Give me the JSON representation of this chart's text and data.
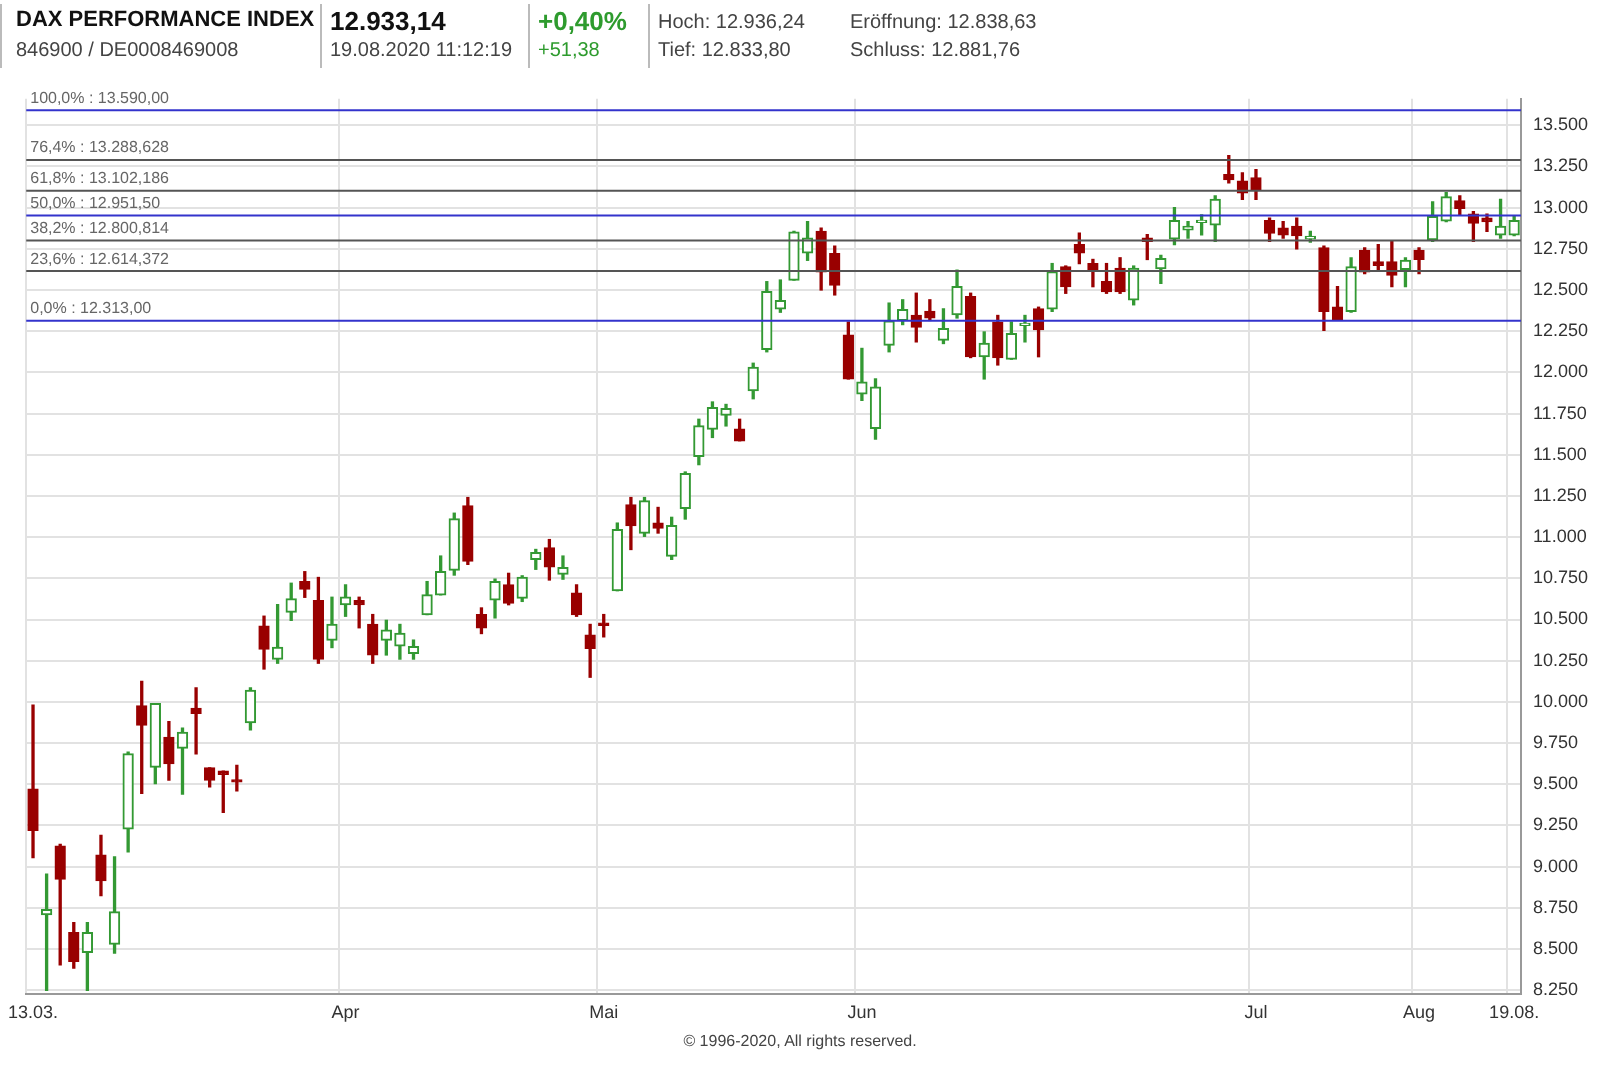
{
  "chart_data": {
    "type": "candlestick",
    "title": "DAX PERFORMANCE INDEX",
    "subtitle": "846900 / DE0008469008",
    "annotations": [
      "12.933,14",
      "19.08.2020 11:12:19",
      "+0,40%",
      "+51,38",
      "Hoch: 12.936,24",
      "Tief: 12.833,80",
      "Eröffnung: 12.838,63",
      "Schluss: 12.881,76",
      "© 1996-2020, All rights reserved."
    ],
    "categories": [
      "13.03.",
      null,
      null,
      null,
      null,
      null,
      null,
      null,
      null,
      null,
      null,
      null,
      null,
      null,
      null,
      null,
      null,
      null,
      null,
      null,
      null,
      null,
      null,
      "Apr",
      null,
      null,
      null,
      null,
      null,
      null,
      null,
      null,
      null,
      null,
      null,
      null,
      null,
      null,
      null,
      null,
      null,
      null,
      "Mai",
      null,
      null,
      null,
      null,
      null,
      null,
      null,
      null,
      null,
      null,
      null,
      null,
      null,
      null,
      null,
      null,
      null,
      null,
      "Jun",
      null,
      null,
      null,
      null,
      null,
      null,
      null,
      null,
      null,
      null,
      null,
      null,
      null,
      null,
      null,
      null,
      null,
      null,
      null,
      null,
      null,
      null,
      null,
      null,
      null,
      null,
      null,
      null,
      "Jul",
      null,
      null,
      null,
      null,
      null,
      null,
      null,
      null,
      null,
      null,
      null,
      "Aug",
      null,
      null,
      null,
      null,
      null,
      null,
      "19.08."
    ],
    "ohlc": [
      [
        9470,
        9980,
        9055,
        9220
      ],
      [
        8710,
        8955,
        8250,
        8740
      ],
      [
        9125,
        9135,
        8405,
        8925
      ],
      [
        8600,
        8660,
        8385,
        8425
      ],
      [
        8480,
        8660,
        8250,
        8600
      ],
      [
        9070,
        9190,
        8825,
        8915
      ],
      [
        8530,
        9060,
        8475,
        8725
      ],
      [
        9230,
        9695,
        9090,
        9685
      ],
      [
        9975,
        10125,
        9445,
        9860
      ],
      [
        9605,
        9990,
        9505,
        9990
      ],
      [
        9785,
        9880,
        9525,
        9625
      ],
      [
        9720,
        9840,
        9440,
        9815
      ],
      [
        9960,
        10085,
        9685,
        9930
      ],
      [
        9600,
        9600,
        9485,
        9525
      ],
      [
        9580,
        9580,
        9330,
        9560
      ],
      [
        9525,
        9615,
        9460,
        9515
      ],
      [
        9875,
        10085,
        9830,
        10070
      ],
      [
        10460,
        10520,
        10200,
        10320
      ],
      [
        10260,
        10590,
        10235,
        10330
      ],
      [
        10545,
        10720,
        10495,
        10625
      ],
      [
        10730,
        10790,
        10635,
        10685
      ],
      [
        10615,
        10755,
        10235,
        10260
      ],
      [
        10375,
        10635,
        10330,
        10470
      ],
      [
        10590,
        10710,
        10520,
        10635
      ],
      [
        10615,
        10635,
        10450,
        10590
      ],
      [
        10470,
        10530,
        10235,
        10285
      ],
      [
        10375,
        10495,
        10285,
        10435
      ],
      [
        10340,
        10470,
        10260,
        10415
      ],
      [
        10295,
        10375,
        10260,
        10335
      ],
      [
        10530,
        10730,
        10530,
        10650
      ],
      [
        10650,
        10885,
        10650,
        10790
      ],
      [
        10800,
        11145,
        10770,
        11110
      ],
      [
        11190,
        11240,
        10835,
        10855
      ],
      [
        10530,
        10570,
        10415,
        10450
      ],
      [
        10620,
        10745,
        10510,
        10730
      ],
      [
        10710,
        10780,
        10590,
        10600
      ],
      [
        10630,
        10765,
        10610,
        10755
      ],
      [
        10865,
        10925,
        10805,
        10905
      ],
      [
        10935,
        10985,
        10740,
        10820
      ],
      [
        10775,
        10885,
        10745,
        10815
      ],
      [
        10660,
        10710,
        10520,
        10530
      ],
      [
        10405,
        10470,
        10150,
        10325
      ],
      [
        10470,
        10530,
        10395,
        10465
      ],
      [
        10675,
        11085,
        10675,
        11045
      ],
      [
        11195,
        11240,
        10925,
        11070
      ],
      [
        11025,
        11240,
        11005,
        11220
      ],
      [
        11085,
        11180,
        11025,
        11055
      ],
      [
        10885,
        11120,
        10865,
        11070
      ],
      [
        11175,
        11395,
        11110,
        11385
      ],
      [
        11490,
        11715,
        11440,
        11675
      ],
      [
        11655,
        11820,
        11605,
        11785
      ],
      [
        11740,
        11805,
        11675,
        11780
      ],
      [
        11655,
        11715,
        11585,
        11585
      ],
      [
        11890,
        12055,
        11840,
        12030
      ],
      [
        12140,
        12550,
        12125,
        12490
      ],
      [
        12385,
        12560,
        12365,
        12435
      ],
      [
        12560,
        12855,
        12560,
        12850
      ],
      [
        12725,
        12915,
        12680,
        12815
      ],
      [
        12855,
        12875,
        12500,
        12610
      ],
      [
        12720,
        12765,
        12470,
        12530
      ],
      [
        12225,
        12305,
        11960,
        11960
      ],
      [
        11870,
        12145,
        11830,
        11940
      ],
      [
        11660,
        11960,
        11595,
        11910
      ],
      [
        12165,
        12420,
        12125,
        12310
      ],
      [
        12315,
        12440,
        12290,
        12380
      ],
      [
        12345,
        12480,
        12185,
        12275
      ],
      [
        12370,
        12440,
        12315,
        12330
      ],
      [
        12195,
        12385,
        12175,
        12265
      ],
      [
        12350,
        12620,
        12330,
        12520
      ],
      [
        12460,
        12480,
        12090,
        12095
      ],
      [
        12095,
        12245,
        11960,
        12175
      ],
      [
        12305,
        12345,
        12045,
        12090
      ],
      [
        12080,
        12305,
        12080,
        12235
      ],
      [
        12285,
        12345,
        12185,
        12295
      ],
      [
        12385,
        12395,
        12095,
        12260
      ],
      [
        12385,
        12660,
        12370,
        12610
      ],
      [
        12640,
        12645,
        12480,
        12520
      ],
      [
        12775,
        12845,
        12660,
        12725
      ],
      [
        12660,
        12685,
        12520,
        12620
      ],
      [
        12550,
        12660,
        12480,
        12490
      ],
      [
        12630,
        12695,
        12480,
        12490
      ],
      [
        12440,
        12645,
        12410,
        12630
      ],
      [
        12815,
        12835,
        12685,
        12795
      ],
      [
        12630,
        12710,
        12540,
        12690
      ],
      [
        12810,
        13000,
        12775,
        12920
      ],
      [
        12865,
        12915,
        12815,
        12885
      ],
      [
        12910,
        12955,
        12835,
        12920
      ],
      [
        12895,
        13070,
        12795,
        13050
      ],
      [
        13200,
        13315,
        13150,
        13170
      ],
      [
        13160,
        13210,
        13050,
        13090
      ],
      [
        13180,
        13230,
        13050,
        13105
      ],
      [
        12920,
        12935,
        12795,
        12845
      ],
      [
        12875,
        12915,
        12815,
        12835
      ],
      [
        12885,
        12935,
        12750,
        12830
      ],
      [
        12810,
        12855,
        12790,
        12825
      ],
      [
        12755,
        12765,
        12255,
        12370
      ],
      [
        12395,
        12520,
        12315,
        12315
      ],
      [
        12370,
        12695,
        12365,
        12640
      ],
      [
        12740,
        12755,
        12600,
        12610
      ],
      [
        12670,
        12775,
        12620,
        12650
      ],
      [
        12670,
        12795,
        12520,
        12590
      ],
      [
        12625,
        12695,
        12520,
        12680
      ],
      [
        12740,
        12755,
        12600,
        12685
      ],
      [
        12805,
        13035,
        12795,
        12945
      ],
      [
        12920,
        13090,
        12915,
        13065
      ],
      [
        13040,
        13070,
        12955,
        12995
      ],
      [
        12960,
        12975,
        12795,
        12905
      ],
      [
        12935,
        12960,
        12855,
        12915
      ],
      [
        12835,
        13050,
        12815,
        12885
      ],
      [
        12835,
        12945,
        12830,
        12920
      ]
    ],
    "colors": [
      "#990000",
      "#339933",
      "#990000",
      "#990000",
      "#339933",
      "#990000",
      "#339933",
      "#339933",
      "#990000",
      "#339933",
      "#990000",
      "#339933",
      "#990000",
      "#990000",
      "#990000",
      "#990000",
      "#339933",
      "#990000",
      "#339933",
      "#339933",
      "#990000",
      "#990000",
      "#339933",
      "#339933",
      "#990000",
      "#990000",
      "#339933",
      "#339933",
      "#339933",
      "#339933",
      "#339933",
      "#339933",
      "#990000",
      "#990000",
      "#339933",
      "#990000",
      "#339933",
      "#339933",
      "#990000",
      "#339933",
      "#990000",
      "#990000",
      "#990000",
      "#339933",
      "#990000",
      "#339933",
      "#990000",
      "#339933",
      "#339933",
      "#339933",
      "#339933",
      "#339933",
      "#990000",
      "#339933",
      "#339933",
      "#339933",
      "#339933",
      "#339933",
      "#990000",
      "#990000",
      "#990000",
      "#339933",
      "#339933",
      "#339933",
      "#339933",
      "#990000",
      "#990000",
      "#339933",
      "#339933",
      "#990000",
      "#339933",
      "#990000",
      "#339933",
      "#339933",
      "#990000",
      "#339933",
      "#990000",
      "#990000",
      "#990000",
      "#990000",
      "#990000",
      "#339933",
      "#990000",
      "#339933",
      "#339933",
      "#339933",
      "#339933",
      "#339933",
      "#990000",
      "#990000",
      "#990000",
      "#990000",
      "#990000",
      "#990000",
      "#339933",
      "#990000",
      "#990000",
      "#339933",
      "#990000",
      "#990000",
      "#990000",
      "#339933",
      "#990000",
      "#339933",
      "#339933",
      "#990000",
      "#990000",
      "#990000",
      "#339933",
      "#339933"
    ],
    "ylim": [
      8225,
      13660
    ],
    "yticks": [
      {
        "value": 8250,
        "label": "8.250"
      },
      {
        "value": 8500,
        "label": "8.500"
      },
      {
        "value": 8750,
        "label": "8.750"
      },
      {
        "value": 9000,
        "label": "9.000"
      },
      {
        "value": 9250,
        "label": "9.250"
      },
      {
        "value": 9500,
        "label": "9.500"
      },
      {
        "value": 9750,
        "label": "9.750"
      },
      {
        "value": 10000,
        "label": "10.000"
      },
      {
        "value": 10250,
        "label": "10.250"
      },
      {
        "value": 10500,
        "label": "10.500"
      },
      {
        "value": 10750,
        "label": "10.750"
      },
      {
        "value": 11000,
        "label": "11.000"
      },
      {
        "value": 11250,
        "label": "11.250"
      },
      {
        "value": 11500,
        "label": "11.500"
      },
      {
        "value": 11750,
        "label": "11.750"
      },
      {
        "value": 12000,
        "label": "12.000"
      },
      {
        "value": 12250,
        "label": "12.250"
      },
      {
        "value": 12500,
        "label": "12.500"
      },
      {
        "value": 12750,
        "label": "12.750"
      },
      {
        "value": 13000,
        "label": "13.000"
      },
      {
        "value": 13250,
        "label": "13.250"
      },
      {
        "value": 13500,
        "label": "13.500"
      }
    ],
    "grid": true,
    "ref_lines": [
      {
        "axis": "y",
        "value": 13590,
        "label": "100,0% : 13.590,00",
        "color": "#3333cc"
      },
      {
        "axis": "y",
        "value": 13288.628,
        "label": "76,4% : 13.288,628",
        "color": "#555555"
      },
      {
        "axis": "y",
        "value": 13102.186,
        "label": "61,8% : 13.102,186",
        "color": "#555555"
      },
      {
        "axis": "y",
        "value": 12951.5,
        "label": "50,0% : 12.951,50",
        "color": "#3333cc"
      },
      {
        "axis": "y",
        "value": 12800.814,
        "label": "38,2% : 12.800,814",
        "color": "#555555"
      },
      {
        "axis": "y",
        "value": 12614.372,
        "label": "23,6% : 12.614,372",
        "color": "#555555"
      },
      {
        "axis": "y",
        "value": 12313,
        "label": "0,0% : 12.313,00",
        "color": "#3333cc"
      }
    ]
  }
}
